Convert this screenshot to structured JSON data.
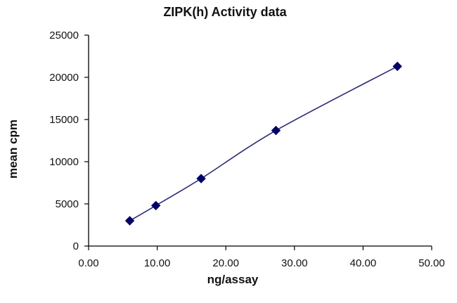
{
  "chart_data": {
    "type": "scatter",
    "title": "ZIPK(h) Activity data",
    "xlabel": "ng/assay",
    "ylabel": "mean cpm",
    "xlim": [
      0,
      50
    ],
    "ylim": [
      0,
      25000
    ],
    "x_ticks": [
      "0.00",
      "10.00",
      "20.00",
      "30.00",
      "40.00",
      "50.00"
    ],
    "y_ticks": [
      "0",
      "5000",
      "10000",
      "15000",
      "20000",
      "25000"
    ],
    "x_tick_values": [
      0,
      10,
      20,
      30,
      40,
      50
    ],
    "y_tick_values": [
      0,
      5000,
      10000,
      15000,
      20000,
      25000
    ],
    "grid": false,
    "legend": "none",
    "series": [
      {
        "x": [
          6.0,
          9.8,
          16.4,
          27.3,
          45.0
        ],
        "values": [
          3000,
          4800,
          8000,
          13700,
          21300
        ],
        "color": "#000066",
        "line_color": "#2a2a78",
        "marker": "diamond",
        "connected": "smooth-line"
      }
    ]
  }
}
